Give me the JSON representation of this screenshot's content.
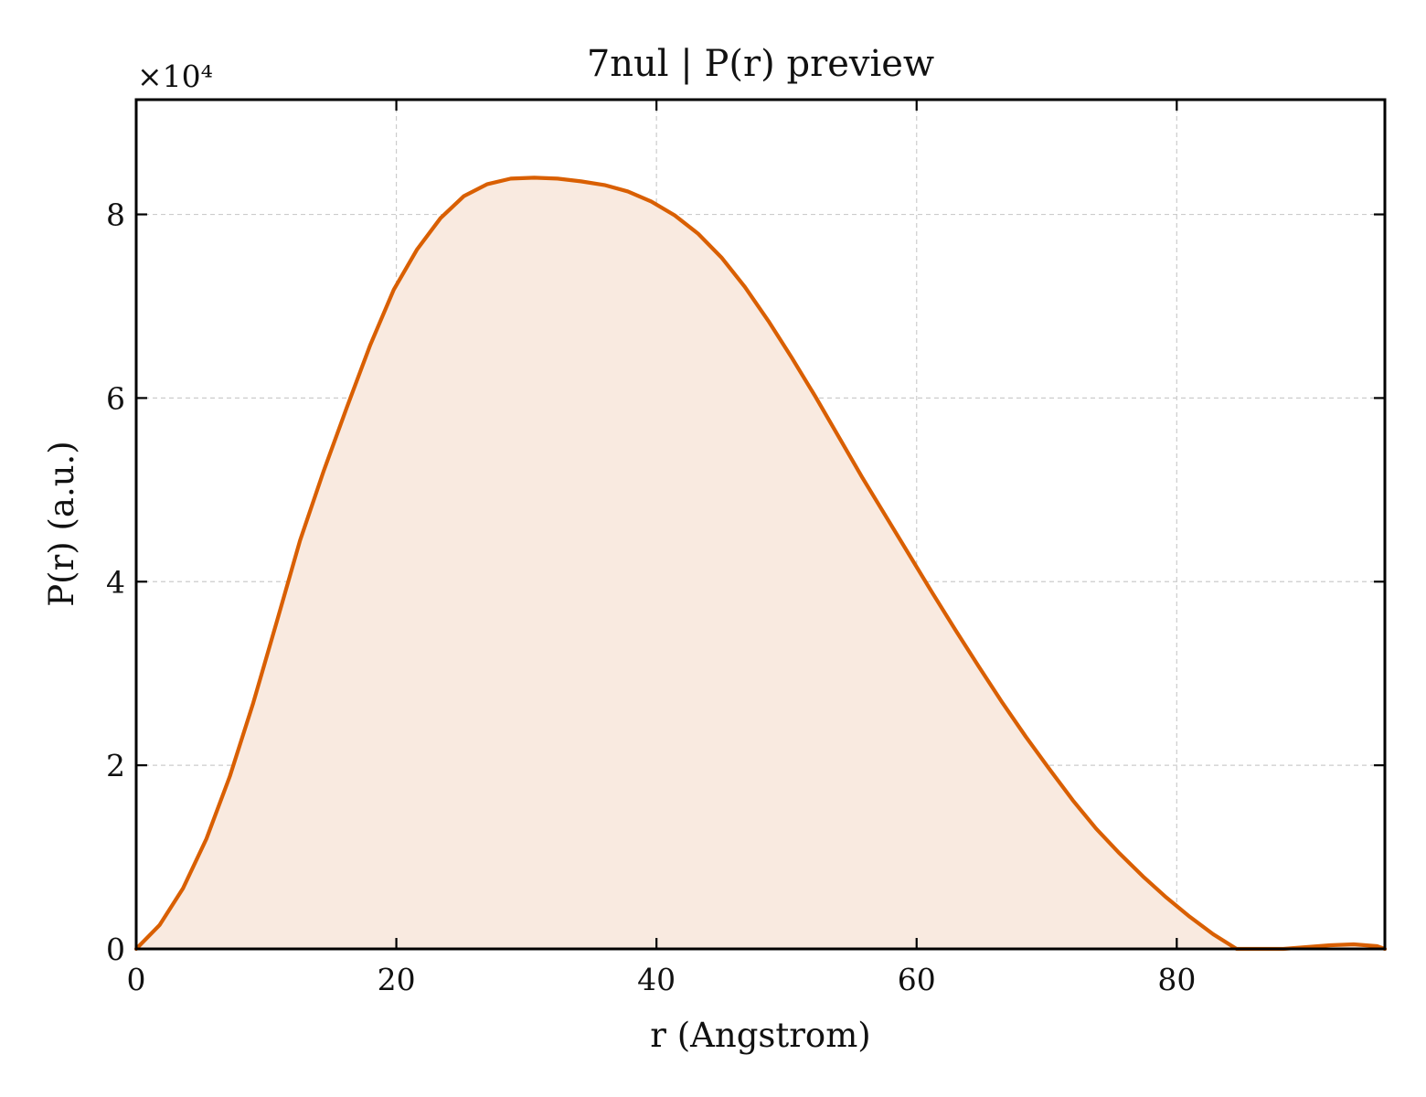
{
  "chart_data": {
    "type": "area",
    "title": "7nul | P(r) preview",
    "xlabel": "r (Angstrom)",
    "ylabel": "P(r) (a.u.)",
    "y_offset_label": "×10⁴",
    "xlim": [
      0,
      96
    ],
    "ylim": [
      0,
      9.25
    ],
    "x_ticks": [
      0,
      20,
      40,
      60,
      80
    ],
    "x_tick_labels": [
      "0",
      "20",
      "40",
      "60",
      "80"
    ],
    "y_ticks": [
      0,
      2,
      4,
      6,
      8
    ],
    "y_tick_labels": [
      "0",
      "2",
      "4",
      "6",
      "8"
    ],
    "grid": true,
    "line_color": "#d95f02",
    "fill_color": "#f9eae0",
    "series": [
      {
        "x": [
          0,
          1.8,
          3.6,
          5.4,
          7.2,
          9.0,
          10.8,
          12.6,
          14.4,
          16.2,
          18.0,
          19.8,
          21.6,
          23.4,
          25.2,
          27.0,
          28.8,
          30.6,
          32.4,
          34.2,
          36.0,
          37.8,
          39.6,
          41.4,
          43.2,
          45.0,
          46.8,
          48.6,
          50.4,
          52.2,
          54.0,
          55.8,
          57.6,
          59.4,
          61.2,
          63.0,
          64.8,
          66.6,
          68.4,
          70.2,
          72.0,
          73.8,
          75.6,
          77.4,
          79.2,
          81.0,
          82.8,
          84.6,
          86.4,
          88.2,
          90.0,
          91.8,
          93.6,
          95.4,
          96.0
        ],
        "y": [
          0.0,
          0.26,
          0.66,
          1.2,
          1.88,
          2.68,
          3.56,
          4.45,
          5.2,
          5.9,
          6.58,
          7.18,
          7.62,
          7.96,
          8.2,
          8.33,
          8.39,
          8.4,
          8.39,
          8.36,
          8.32,
          8.25,
          8.14,
          7.99,
          7.79,
          7.53,
          7.21,
          6.84,
          6.44,
          6.02,
          5.58,
          5.14,
          4.72,
          4.3,
          3.88,
          3.47,
          3.07,
          2.68,
          2.31,
          1.96,
          1.62,
          1.31,
          1.04,
          0.79,
          0.56,
          0.35,
          0.16,
          0.0,
          -0.02,
          -0.01,
          0.02,
          0.04,
          0.05,
          0.03,
          0.0
        ]
      }
    ]
  }
}
